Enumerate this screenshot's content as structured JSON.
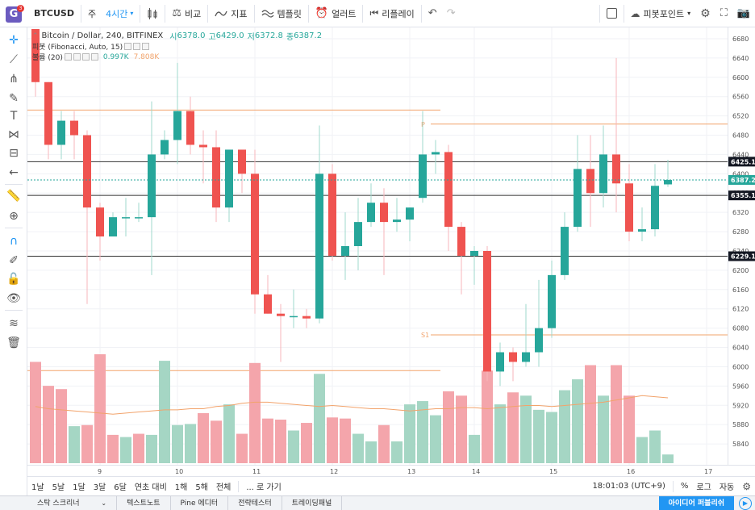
{
  "topbar": {
    "logo_letter": "G",
    "logo_badge": "3",
    "symbol": "BTCUSD",
    "range_label": "주",
    "interval": "4시간",
    "compare": "비교",
    "indicators": "지표",
    "templates": "템플릿",
    "alerts": "얼러트",
    "replay": "리플레이",
    "pivot_label": "피봇포인트"
  },
  "legend": {
    "title": "Bitcoin / Dollar, 240, BITFINEX",
    "open_label": "시",
    "open": "6378.0",
    "high_label": "고",
    "high": "6429.0",
    "low_label": "저",
    "low": "6372.8",
    "close_label": "종",
    "close": "6387.2",
    "pivot_row": "피봇 (Fibonacci, Auto, 15)",
    "volume_row": "볼륨 (20)",
    "volume_val1": "0.997K",
    "volume_val2": "7.808K"
  },
  "colors": {
    "up": "#26a69a",
    "down": "#ef5350",
    "up_vol": "#a5d6c4",
    "down_vol": "#f4a5ab",
    "pivot": "#f2a36b",
    "hline": "#333333",
    "accent": "#2196f3"
  },
  "chart_data": {
    "type": "candlestick",
    "ylim": [
      5800,
      6700
    ],
    "y_ticks": [
      6680,
      6640,
      6600,
      6560,
      6520,
      6480,
      6440,
      6400,
      6360,
      6320,
      6280,
      6240,
      6200,
      6160,
      6120,
      6080,
      6040,
      6000,
      5960,
      5920,
      5880,
      5840
    ],
    "x_labels": [
      "9",
      "10",
      "11",
      "12",
      "13",
      "14",
      "15",
      "16",
      "17"
    ],
    "x_label_slots": [
      5,
      11,
      17,
      23,
      29,
      34,
      40,
      46,
      52
    ],
    "price_labels": [
      {
        "value": 6425.1,
        "text": "6425.1",
        "style": "dark"
      },
      {
        "value": 6387.2,
        "text": "6387.2",
        "style": "green"
      },
      {
        "value": 6355.1,
        "text": "6355.1",
        "style": "dark"
      },
      {
        "value": 6229.1,
        "text": "6229.1",
        "style": "dark"
      }
    ],
    "horizontal_lines": [
      6425.1,
      6355.1,
      6229.1
    ],
    "pivot_levels": [
      {
        "label": "",
        "value": 6532,
        "from": 0,
        "to": 31
      },
      {
        "label": "P",
        "value": 6503,
        "from": 31,
        "to": 54
      },
      {
        "label": "S1",
        "value": 6066,
        "from": 31,
        "to": 54
      },
      {
        "label": "",
        "value": 5992,
        "from": 0,
        "to": 31
      }
    ],
    "candles": [
      {
        "o": 6700,
        "h": 6700,
        "l": 6560,
        "c": 6590
      },
      {
        "o": 6590,
        "h": 6590,
        "l": 6430,
        "c": 6460
      },
      {
        "o": 6460,
        "h": 6530,
        "l": 6430,
        "c": 6510
      },
      {
        "o": 6510,
        "h": 6530,
        "l": 6430,
        "c": 6480
      },
      {
        "o": 6480,
        "h": 6490,
        "l": 6130,
        "c": 6330
      },
      {
        "o": 6330,
        "h": 6340,
        "l": 6220,
        "c": 6270
      },
      {
        "o": 6270,
        "h": 6320,
        "l": 6270,
        "c": 6310
      },
      {
        "o": 6310,
        "h": 6350,
        "l": 6270,
        "c": 6310
      },
      {
        "o": 6310,
        "h": 6340,
        "l": 6300,
        "c": 6310
      },
      {
        "o": 6310,
        "h": 6550,
        "l": 6190,
        "c": 6440
      },
      {
        "o": 6440,
        "h": 6490,
        "l": 6430,
        "c": 6470
      },
      {
        "o": 6470,
        "h": 6630,
        "l": 6420,
        "c": 6530
      },
      {
        "o": 6530,
        "h": 6560,
        "l": 6440,
        "c": 6460
      },
      {
        "o": 6460,
        "h": 6490,
        "l": 6380,
        "c": 6455
      },
      {
        "o": 6455,
        "h": 6490,
        "l": 6300,
        "c": 6330
      },
      {
        "o": 6330,
        "h": 6450,
        "l": 6300,
        "c": 6450
      },
      {
        "o": 6450,
        "h": 6450,
        "l": 6360,
        "c": 6400
      },
      {
        "o": 6400,
        "h": 6450,
        "l": 6110,
        "c": 6150
      },
      {
        "o": 6150,
        "h": 6190,
        "l": 6110,
        "c": 6110
      },
      {
        "o": 6110,
        "h": 6130,
        "l": 6010,
        "c": 6105
      },
      {
        "o": 6105,
        "h": 6160,
        "l": 6080,
        "c": 6105
      },
      {
        "o": 6105,
        "h": 6120,
        "l": 6080,
        "c": 6100
      },
      {
        "o": 6100,
        "h": 6500,
        "l": 6090,
        "c": 6400
      },
      {
        "o": 6400,
        "h": 6420,
        "l": 6220,
        "c": 6230
      },
      {
        "o": 6230,
        "h": 6320,
        "l": 6180,
        "c": 6250
      },
      {
        "o": 6250,
        "h": 6350,
        "l": 6200,
        "c": 6300
      },
      {
        "o": 6300,
        "h": 6380,
        "l": 6290,
        "c": 6340
      },
      {
        "o": 6340,
        "h": 6370,
        "l": 6190,
        "c": 6300
      },
      {
        "o": 6300,
        "h": 6350,
        "l": 6280,
        "c": 6305
      },
      {
        "o": 6305,
        "h": 6330,
        "l": 6260,
        "c": 6330
      },
      {
        "o": 6350,
        "h": 6530,
        "l": 6340,
        "c": 6440
      },
      {
        "o": 6440,
        "h": 6470,
        "l": 6400,
        "c": 6445
      },
      {
        "o": 6445,
        "h": 6460,
        "l": 6240,
        "c": 6290
      },
      {
        "o": 6290,
        "h": 6300,
        "l": 6150,
        "c": 6230
      },
      {
        "o": 6230,
        "h": 6250,
        "l": 6170,
        "c": 6240
      },
      {
        "o": 6240,
        "h": 6250,
        "l": 5970,
        "c": 5990
      },
      {
        "o": 5990,
        "h": 6050,
        "l": 5960,
        "c": 6030
      },
      {
        "o": 6030,
        "h": 6040,
        "l": 5970,
        "c": 6010
      },
      {
        "o": 6010,
        "h": 6130,
        "l": 6000,
        "c": 6030
      },
      {
        "o": 6030,
        "h": 6180,
        "l": 6000,
        "c": 6080
      },
      {
        "o": 6080,
        "h": 6220,
        "l": 6060,
        "c": 6190
      },
      {
        "o": 6190,
        "h": 6320,
        "l": 6180,
        "c": 6290
      },
      {
        "o": 6290,
        "h": 6480,
        "l": 6280,
        "c": 6410
      },
      {
        "o": 6410,
        "h": 6480,
        "l": 6290,
        "c": 6360
      },
      {
        "o": 6360,
        "h": 6500,
        "l": 6330,
        "c": 6440
      },
      {
        "o": 6440,
        "h": 6640,
        "l": 6320,
        "c": 6380
      },
      {
        "o": 6380,
        "h": 6420,
        "l": 6260,
        "c": 6280
      },
      {
        "o": 6280,
        "h": 6330,
        "l": 6260,
        "c": 6285
      },
      {
        "o": 6285,
        "h": 6420,
        "l": 6270,
        "c": 6375
      },
      {
        "o": 6378,
        "h": 6429,
        "l": 6372.8,
        "c": 6387.2
      }
    ],
    "volume": [
      {
        "v": 0.93,
        "up": false
      },
      {
        "v": 0.71,
        "up": false
      },
      {
        "v": 0.68,
        "up": false
      },
      {
        "v": 0.34,
        "up": true
      },
      {
        "v": 0.35,
        "up": false
      },
      {
        "v": 1.0,
        "up": false
      },
      {
        "v": 0.26,
        "up": false
      },
      {
        "v": 0.24,
        "up": true
      },
      {
        "v": 0.27,
        "up": false
      },
      {
        "v": 0.26,
        "up": true
      },
      {
        "v": 0.94,
        "up": true
      },
      {
        "v": 0.35,
        "up": true
      },
      {
        "v": 0.36,
        "up": true
      },
      {
        "v": 0.46,
        "up": false
      },
      {
        "v": 0.39,
        "up": false
      },
      {
        "v": 0.54,
        "up": true
      },
      {
        "v": 0.27,
        "up": false
      },
      {
        "v": 0.92,
        "up": false
      },
      {
        "v": 0.41,
        "up": false
      },
      {
        "v": 0.4,
        "up": false
      },
      {
        "v": 0.3,
        "up": true
      },
      {
        "v": 0.37,
        "up": false
      },
      {
        "v": 0.82,
        "up": true
      },
      {
        "v": 0.42,
        "up": false
      },
      {
        "v": 0.41,
        "up": false
      },
      {
        "v": 0.27,
        "up": true
      },
      {
        "v": 0.2,
        "up": true
      },
      {
        "v": 0.35,
        "up": false
      },
      {
        "v": 0.2,
        "up": true
      },
      {
        "v": 0.54,
        "up": true
      },
      {
        "v": 0.57,
        "up": true
      },
      {
        "v": 0.44,
        "up": true
      },
      {
        "v": 0.66,
        "up": false
      },
      {
        "v": 0.62,
        "up": false
      },
      {
        "v": 0.26,
        "up": true
      },
      {
        "v": 0.85,
        "up": false
      },
      {
        "v": 0.54,
        "up": true
      },
      {
        "v": 0.65,
        "up": false
      },
      {
        "v": 0.62,
        "up": true
      },
      {
        "v": 0.49,
        "up": true
      },
      {
        "v": 0.47,
        "up": true
      },
      {
        "v": 0.67,
        "up": true
      },
      {
        "v": 0.77,
        "up": true
      },
      {
        "v": 0.9,
        "up": false
      },
      {
        "v": 0.62,
        "up": true
      },
      {
        "v": 0.9,
        "up": false
      },
      {
        "v": 0.62,
        "up": false
      },
      {
        "v": 0.24,
        "up": true
      },
      {
        "v": 0.3,
        "up": true
      },
      {
        "v": 0.08,
        "up": true
      }
    ],
    "volume_ma": [
      0.52,
      0.5,
      0.49,
      0.48,
      0.47,
      0.46,
      0.45,
      0.46,
      0.47,
      0.48,
      0.49,
      0.49,
      0.5,
      0.5,
      0.52,
      0.53,
      0.55,
      0.56,
      0.56,
      0.55,
      0.54,
      0.53,
      0.52,
      0.53,
      0.52,
      0.51,
      0.5,
      0.5,
      0.49,
      0.48,
      0.49,
      0.5,
      0.5,
      0.51,
      0.51,
      0.5,
      0.51,
      0.52,
      0.53,
      0.53,
      0.52,
      0.53,
      0.54,
      0.55,
      0.56,
      0.58,
      0.6,
      0.62,
      0.61,
      0.6
    ]
  },
  "bottom": {
    "ranges": [
      "1날",
      "5날",
      "1달",
      "3달",
      "6달",
      "연초 대비",
      "1해",
      "5해",
      "전체"
    ],
    "goto": "... 로 가기",
    "clock": "18:01:03 (UTC+9)",
    "percent": "%",
    "log": "로그",
    "auto": "자동"
  },
  "footer": {
    "tabs": [
      "스탁 스크리너",
      "텍스트노트",
      "Pine 에디터",
      "전략테스터",
      "트레이딩패널"
    ],
    "publish": "아이디어 퍼블리쉬"
  }
}
